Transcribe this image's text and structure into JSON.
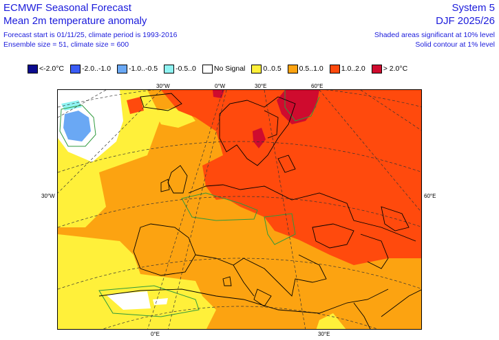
{
  "header": {
    "title": "ECMWF Seasonal Forecast",
    "subtitle": "Mean 2m temperature anomaly",
    "forecast_info": "Forecast start is 01/11/25, climate period is 1993-2016",
    "ensemble_info": "Ensemble size = 51, climate size = 600",
    "system": "System 5",
    "season": "DJF 2025/26",
    "significance_shaded": "Shaded areas significant at 10% level",
    "significance_contour": "Solid contour at 1% level"
  },
  "legend": [
    {
      "label": "<-2.0°C",
      "color": "#0b0b8f"
    },
    {
      "label": "-2.0..-1.0",
      "color": "#3a5cf5"
    },
    {
      "label": "-1.0..-0.5",
      "color": "#6aa8f4"
    },
    {
      "label": "-0.5..0",
      "color": "#8ff3f2"
    },
    {
      "label": "No Signal",
      "color": "#ffffff"
    },
    {
      "label": "0..0.5",
      "color": "#fff03a"
    },
    {
      "label": "0.5..1.0",
      "color": "#fca311"
    },
    {
      "label": "1.0..2.0",
      "color": "#ff4a0d"
    },
    {
      "label": "> 2.0°C",
      "color": "#cf0b2e"
    }
  ],
  "grid_labels": {
    "top_30w": "30°W",
    "top_0w": "0°W",
    "top_30e": "30°E",
    "top_60e": "60°E",
    "left_30w": "30°W",
    "right_60e": "60°E",
    "bottom_0e": "0°E",
    "bottom_30e": "30°E"
  }
}
